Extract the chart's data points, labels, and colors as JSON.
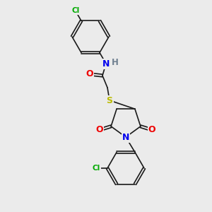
{
  "bg_color": "#ebebeb",
  "bond_color": "#1a1a1a",
  "atom_colors": {
    "N": "#0000ee",
    "O": "#ee0000",
    "S": "#bbbb00",
    "Cl": "#00aa00",
    "H": "#708090"
  }
}
